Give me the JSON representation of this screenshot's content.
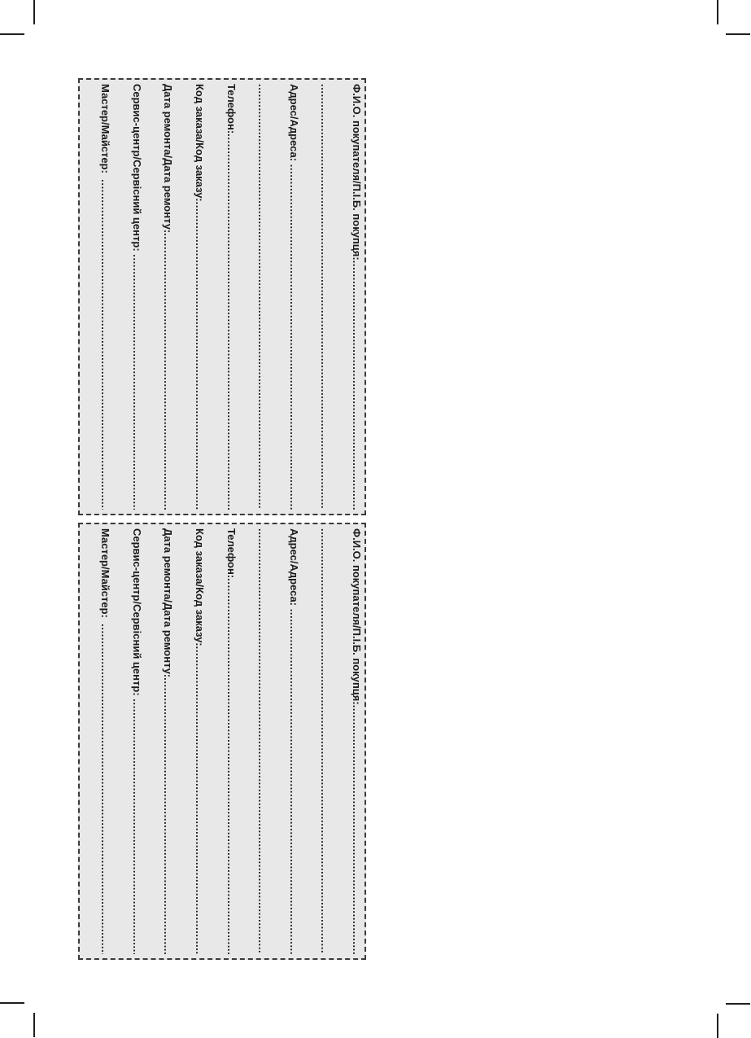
{
  "colors": {
    "page_background": "#ffffff",
    "coupon_background": "#e8e8e8",
    "coupon_border": "#3a3a3a",
    "text": "#1b1b1b",
    "crop_mark": "#1f1f1f"
  },
  "coupon": {
    "orientation": "rotated-90-clockwise",
    "lines": [
      {
        "label": "Ф.И.О. покупателя/П.І.Б. покупця:"
      },
      {
        "label": ""
      },
      {
        "label": "Адрес/Адреса: "
      },
      {
        "label": ""
      },
      {
        "label": "Телефон:"
      },
      {
        "label": "Код заказа/Код заказу:"
      },
      {
        "label": "Дата ремонта/Дата ремонту:"
      },
      {
        "label": "Сервис-центр/Сервісний центр: "
      },
      {
        "label": "Мастер/Майстер:  "
      }
    ],
    "dots": "........................................................................................................................................................................"
  }
}
